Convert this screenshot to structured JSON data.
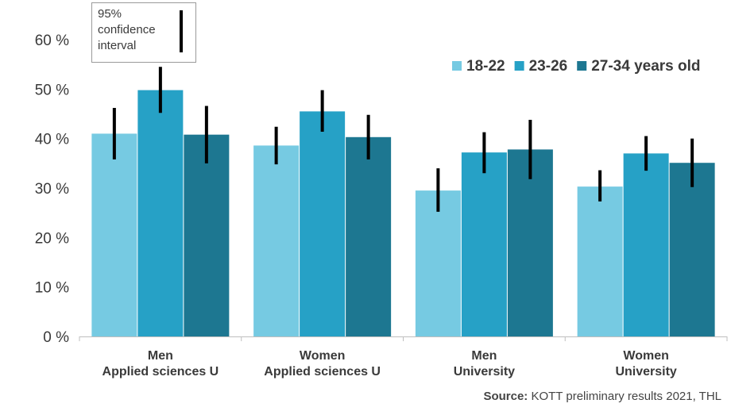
{
  "chart_data": {
    "type": "bar",
    "categories": [
      [
        "Men",
        "Applied sciences U"
      ],
      [
        "Women",
        "Applied sciences U"
      ],
      [
        "Men",
        "University"
      ],
      [
        "Women",
        "University"
      ]
    ],
    "series": [
      {
        "name": "18-22",
        "color": "#76cae2",
        "values": [
          41,
          38.6,
          29.5,
          30.3
        ],
        "ci_low": [
          35.8,
          34.8,
          25.2,
          27.3
        ],
        "ci_high": [
          46.2,
          42.4,
          34.0,
          33.6
        ]
      },
      {
        "name": "23-26",
        "color": "#26a1c6",
        "values": [
          49.8,
          45.5,
          37.2,
          37.0
        ],
        "ci_low": [
          45.2,
          41.4,
          33.0,
          33.5
        ],
        "ci_high": [
          54.5,
          49.8,
          41.3,
          40.5
        ]
      },
      {
        "name": "27-34 years old",
        "color": "#1d7791",
        "values": [
          40.8,
          40.3,
          37.8,
          35.1
        ],
        "ci_low": [
          35.0,
          35.8,
          31.8,
          30.2
        ],
        "ci_high": [
          46.6,
          44.8,
          43.8,
          40.0
        ]
      }
    ],
    "y_ticks": [
      "0 %",
      "10 %",
      "20 %",
      "30 %",
      "40 %",
      "50 %",
      "60 %"
    ],
    "ylim": [
      0,
      60
    ],
    "ci_legend_lines": [
      "95%",
      "confidence",
      "interval"
    ],
    "legend_position": "top-right",
    "grid": false,
    "source_label": "Source:",
    "source_text": "KOTT preliminary  results 2021, THL"
  }
}
